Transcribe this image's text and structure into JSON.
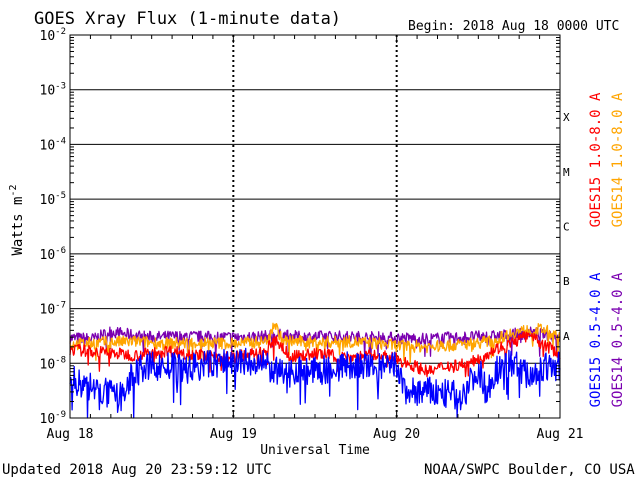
{
  "chart_data": {
    "type": "line",
    "title": "GOES Xray Flux (1-minute data)",
    "begin_label": "Begin:  2018 Aug 18 0000 UTC",
    "xlabel": "Universal Time",
    "ylabel": "Watts m",
    "ylabel_exp": "-2",
    "y_scale": "log",
    "ylim": [
      1e-09,
      0.01
    ],
    "y_ticks": [
      {
        "exp": "-9",
        "value": 1e-09
      },
      {
        "exp": "-8",
        "value": 1e-08
      },
      {
        "exp": "-7",
        "value": 1e-07
      },
      {
        "exp": "-6",
        "value": 1e-06
      },
      {
        "exp": "-5",
        "value": 1e-05
      },
      {
        "exp": "-4",
        "value": 0.0001
      },
      {
        "exp": "-3",
        "value": 0.001
      },
      {
        "exp": "-2",
        "value": 0.01
      }
    ],
    "tick_base": "10",
    "x_days": 3,
    "x_ticks": [
      "Aug 18",
      "Aug 19",
      "Aug 20",
      "Aug 21"
    ],
    "flare_classes": [
      {
        "label": "A",
        "value": 1e-08
      },
      {
        "label": "B",
        "value": 1e-07
      },
      {
        "label": "C",
        "value": 1e-06
      },
      {
        "label": "M",
        "value": 1e-05
      },
      {
        "label": "X",
        "value": 0.0001
      }
    ],
    "grid": true,
    "legend": [
      {
        "name": "GOES15 1.0-8.0 A",
        "color": "#ff0000",
        "placement": "right-top"
      },
      {
        "name": "GOES14 1.0-8.0 A",
        "color": "#ffa500",
        "placement": "right-top"
      },
      {
        "name": "GOES15 0.5-4.0 A",
        "color": "#0000ff",
        "placement": "right-bottom"
      },
      {
        "name": "GOES14 0.5-4.0 A",
        "color": "#7a00b0",
        "placement": "right-bottom"
      }
    ],
    "series": [
      {
        "name": "GOES14 0.5-4.0 A",
        "color": "#7a00b0",
        "x": [
          0,
          0.15,
          0.25,
          0.4,
          0.5,
          0.7,
          0.9,
          1.0,
          1.2,
          1.3,
          1.4,
          1.6,
          1.8,
          2.0,
          2.2,
          2.4,
          2.6,
          2.8,
          2.9,
          3.0
        ],
        "y": [
          2.9e-08,
          2.8e-08,
          3.8e-08,
          3.2e-08,
          3e-08,
          3.1e-08,
          3e-08,
          3e-08,
          3.1e-08,
          3.3e-08,
          3e-08,
          3.1e-08,
          3e-08,
          2.9e-08,
          2.8e-08,
          3e-08,
          3.1e-08,
          3.6e-08,
          3.5e-08,
          3e-08
        ]
      },
      {
        "name": "GOES14 1.0-8.0 A",
        "color": "#ffa500",
        "x": [
          0,
          0.2,
          0.4,
          0.6,
          0.8,
          1.0,
          1.2,
          1.25,
          1.3,
          1.5,
          1.7,
          1.9,
          2.0,
          2.2,
          2.4,
          2.6,
          2.7,
          2.8,
          2.9,
          3.0
        ],
        "y": [
          2.2e-08,
          2.4e-08,
          2.5e-08,
          2.3e-08,
          2.4e-08,
          2.3e-08,
          2.5e-08,
          5.5e-08,
          2.6e-08,
          2.4e-08,
          2.5e-08,
          2.3e-08,
          2.1e-08,
          2e-08,
          2.2e-08,
          2.6e-08,
          3.6e-08,
          4e-08,
          4.2e-08,
          2.8e-08
        ]
      },
      {
        "name": "GOES15 1.0-8.0 A",
        "color": "#ff0000",
        "x": [
          0,
          0.2,
          0.4,
          0.6,
          0.8,
          1.0,
          1.2,
          1.25,
          1.35,
          1.5,
          1.7,
          1.9,
          2.0,
          2.2,
          2.3,
          2.45,
          2.6,
          2.7,
          2.8,
          2.9,
          3.0
        ],
        "y": [
          1.8e-08,
          1.6e-08,
          1.4e-08,
          1.7e-08,
          1.4e-08,
          1.3e-08,
          1.6e-08,
          2.9e-08,
          1.3e-08,
          1.5e-08,
          1.3e-08,
          1.4e-08,
          1.2e-08,
          7e-09,
          9e-09,
          1e-08,
          1.8e-08,
          2.3e-08,
          3.2e-08,
          2.2e-08,
          1.5e-08
        ]
      },
      {
        "name": "GOES15 0.5-4.0 A",
        "color": "#0000ff",
        "x": [
          0,
          0.1,
          0.2,
          0.3,
          0.4,
          0.5,
          0.7,
          0.9,
          1.0,
          1.2,
          1.3,
          1.4,
          1.5,
          1.7,
          1.9,
          2.0,
          2.05,
          2.2,
          2.4,
          2.5,
          2.55,
          2.6,
          2.7,
          2.8,
          2.9,
          3.0
        ],
        "y": [
          5e-09,
          4e-09,
          3e-09,
          2.2e-09,
          7e-09,
          9e-09,
          8e-09,
          1e-08,
          1.1e-08,
          9e-09,
          6e-09,
          8e-09,
          7e-09,
          9e-09,
          8e-09,
          9e-09,
          3e-09,
          3e-09,
          2.5e-09,
          8e-09,
          3e-09,
          7e-09,
          1.1e-08,
          6e-09,
          8e-09,
          9e-09
        ]
      }
    ]
  },
  "footer": {
    "updated": "Updated 2018 Aug 20 23:59:12 UTC",
    "credit": "NOAA/SWPC Boulder, CO USA"
  }
}
